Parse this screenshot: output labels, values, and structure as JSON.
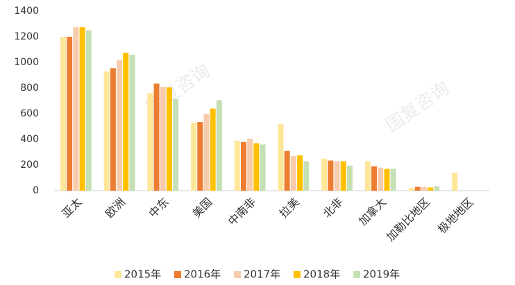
{
  "chart_data": {
    "type": "bar",
    "categories": [
      "亚太",
      "欧洲",
      "中东",
      "美国",
      "中南非",
      "拉美",
      "北非",
      "加拿大",
      "加勒比地区",
      "极地地区"
    ],
    "series": [
      {
        "name": "2015年",
        "color": "#ffe699",
        "values": [
          1200,
          930,
          760,
          530,
          390,
          520,
          250,
          230,
          20,
          140
        ]
      },
      {
        "name": "2016年",
        "color": "#ed7d31",
        "values": [
          1200,
          955,
          835,
          535,
          380,
          310,
          235,
          190,
          30,
          0
        ]
      },
      {
        "name": "2017年",
        "color": "#f8cbad",
        "values": [
          1275,
          1020,
          810,
          600,
          405,
          270,
          230,
          180,
          30,
          0
        ]
      },
      {
        "name": "2018年",
        "color": "#ffc000",
        "values": [
          1275,
          1075,
          805,
          640,
          370,
          275,
          230,
          170,
          25,
          0
        ]
      },
      {
        "name": "2019年",
        "color": "#c5e0b4",
        "values": [
          1250,
          1060,
          715,
          705,
          360,
          230,
          195,
          170,
          35,
          0
        ]
      }
    ],
    "ylim": [
      0,
      1400
    ],
    "yticks": [
      0,
      200,
      400,
      600,
      800,
      1000,
      1200,
      1400
    ],
    "legend": "bottom",
    "watermarks": [
      "国复咨询",
      "国复咨询"
    ]
  }
}
